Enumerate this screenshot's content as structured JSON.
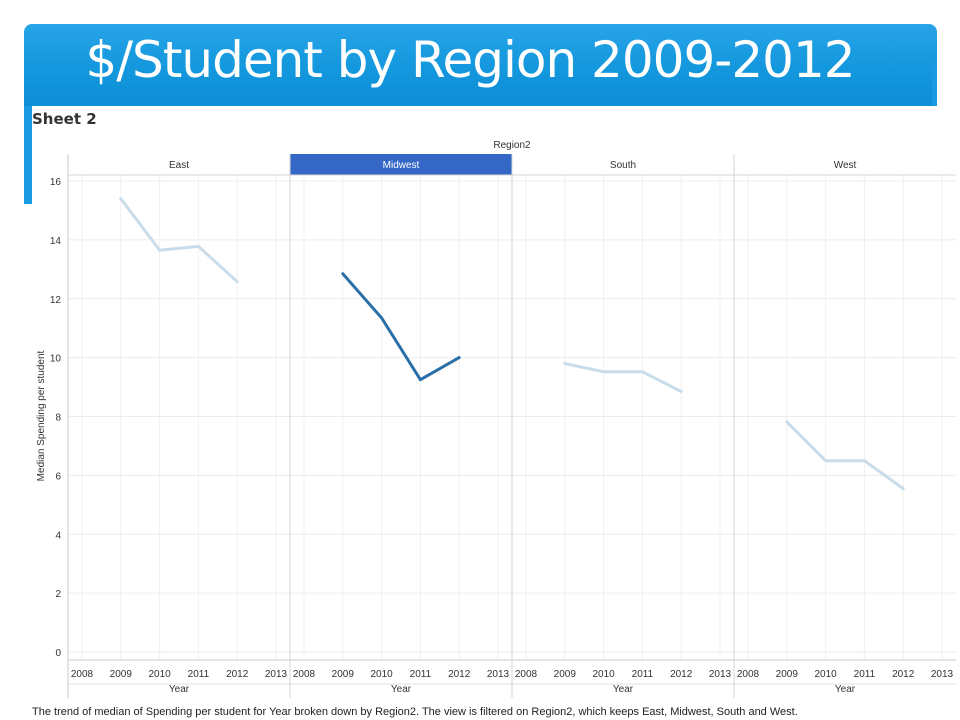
{
  "slide": {
    "title": "$/Student by Region 2009-2012",
    "sheet_label": "Sheet 2",
    "caption": "The trend of median of Spending per student for Year broken down by Region2. The view is filtered on Region2, which keeps East, Midwest, South and West."
  },
  "colors": {
    "title_bar": "#1397dd",
    "highlight_line": "#2a6fa8",
    "muted_line": "#c9dce9",
    "selected_header": "#3567c6"
  },
  "chart_data": {
    "type": "line",
    "facet_title": "Region2",
    "xlabel": "Year",
    "ylabel": "Median Spending per student",
    "ylim": [
      0,
      16
    ],
    "yticks": [
      0,
      2,
      4,
      6,
      8,
      10,
      12,
      14,
      16
    ],
    "x_ticks": [
      "2008",
      "2009",
      "2010",
      "2011",
      "2012",
      "2013"
    ],
    "grid": true,
    "panels": [
      {
        "name": "East",
        "selected": false,
        "x": [
          2009,
          2010,
          2011,
          2012
        ],
        "values": [
          15.4,
          13.65,
          13.78,
          12.58
        ]
      },
      {
        "name": "Midwest",
        "selected": true,
        "x": [
          2009,
          2010,
          2011,
          2012
        ],
        "values": [
          12.85,
          11.35,
          9.25,
          10.0
        ]
      },
      {
        "name": "South",
        "selected": false,
        "x": [
          2009,
          2010,
          2011,
          2012
        ],
        "values": [
          9.8,
          9.52,
          9.52,
          8.85
        ]
      },
      {
        "name": "West",
        "selected": false,
        "x": [
          2009,
          2010,
          2011,
          2012
        ],
        "values": [
          7.82,
          6.5,
          6.5,
          5.55
        ]
      }
    ]
  }
}
